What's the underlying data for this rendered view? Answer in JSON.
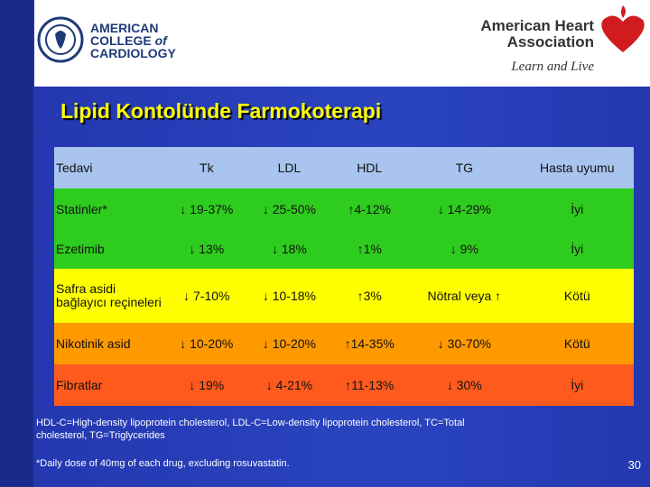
{
  "header": {
    "acc_logo": {
      "line1": "AMERICAN",
      "line2": "COLLEGE",
      "line2_suffix": "of",
      "line3": "CARDIOLOGY"
    },
    "aha_logo": {
      "line1": "American Heart",
      "line2": "Association",
      "tagline": "Learn and Live"
    }
  },
  "title": "Lipid Kontolünde Farmokoterapi",
  "table": {
    "columns": [
      "Tedavi",
      "Tk",
      "LDL",
      "HDL",
      "TG",
      "Hasta uyumu"
    ],
    "rows": [
      [
        "Statinler*",
        "↓ 19-37%",
        "↓ 25-50%",
        "↑4-12%",
        "↓ 14-29%",
        "İyi"
      ],
      [
        "Ezetimib",
        "↓ 13%",
        "↓ 18%",
        "↑1%",
        "↓ 9%",
        "İyi"
      ],
      [
        "Safra asidi bağlayıcı reçineleri",
        "↓ 7-10%",
        "↓ 10-18%",
        "↑3%",
        "Nötral veya ↑",
        "Kötü"
      ],
      [
        "Nikotinik asid",
        "↓ 10-20%",
        "↓ 10-20%",
        "↑14-35%",
        "↓ 30-70%",
        "Kötü"
      ],
      [
        "Fibratlar",
        "↓ 19%",
        "↓ 4-21%",
        "↑11-13%",
        "↓ 30%",
        "İyi"
      ]
    ]
  },
  "footnotes": [
    "HDL-C=High-density lipoprotein cholesterol, LDL-C=Low-density lipoprotein cholesterol, TC=Total cholesterol, TG=Triglycerides",
    "*Daily dose of 40mg of each drug, excluding rosuvastatin."
  ],
  "page_number": "30"
}
